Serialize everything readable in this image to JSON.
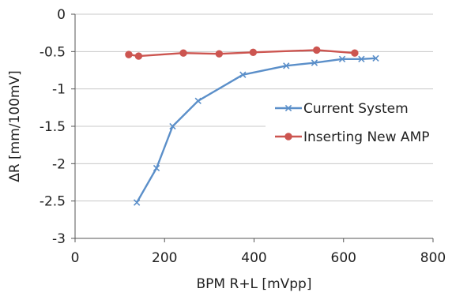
{
  "chart_data": {
    "type": "line",
    "title": "",
    "xlabel": "BPM R+L [mVpp]",
    "ylabel": "ΔR [mm/100mV]",
    "xlim": [
      0,
      800
    ],
    "ylim": [
      -3,
      0
    ],
    "xticks": [
      0,
      200,
      400,
      600,
      800
    ],
    "yticks": [
      0,
      -0.5,
      -1,
      -1.5,
      -2,
      -2.5,
      -3
    ],
    "xtick_labels": [
      "0",
      "200",
      "400",
      "600",
      "800"
    ],
    "ytick_labels": [
      "0",
      "-0.5",
      "-1",
      "-1.5",
      "-2",
      "-2.5",
      "-3"
    ],
    "grid": "horizontal",
    "legend_position": "right",
    "series": [
      {
        "name": "Current System",
        "color": "#5b8fc9",
        "marker": "x",
        "x": [
          138,
          182,
          218,
          275,
          375,
          472,
          535,
          597,
          640,
          672
        ],
        "y": [
          -2.52,
          -2.06,
          -1.5,
          -1.16,
          -0.81,
          -0.69,
          -0.65,
          -0.6,
          -0.6,
          -0.59
        ]
      },
      {
        "name": "Inserting New AMP",
        "color": "#cc5550",
        "marker": "circle",
        "x": [
          120,
          142,
          242,
          322,
          398,
          540,
          625
        ],
        "y": [
          -0.54,
          -0.56,
          -0.52,
          -0.53,
          -0.51,
          -0.48,
          -0.52
        ]
      }
    ]
  }
}
